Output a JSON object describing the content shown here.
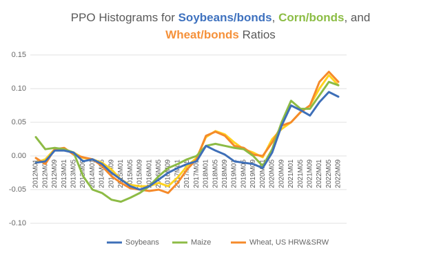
{
  "chart_data": {
    "type": "line",
    "title": [
      "PPO Histograms for ",
      {
        "text": "Soybeans/bonds",
        "color": "#3f72bf"
      },
      ", ",
      {
        "text": "Corn/bonds",
        "color": "#8cbd45"
      },
      ", and",
      {
        "text": "Wheat/bonds",
        "color": "#f5913a"
      },
      " Ratios"
    ],
    "categories": [
      "2012M01",
      "2012M05",
      "2012M09",
      "2013M01",
      "2013M05",
      "2013M09",
      "2014M01",
      "2014M05",
      "2014M09",
      "2015M01",
      "2015M05",
      "2015M09",
      "2016M01",
      "2016M05",
      "2016M09",
      "2017M01",
      "2017M05",
      "2017M09",
      "2018M01",
      "2018M05",
      "2018M09",
      "2019M01",
      "2019M05",
      "2019M09",
      "2020M01",
      "2020M05",
      "2020M09",
      "2021M01",
      "2021M05",
      "2021M09",
      "2022M01",
      "2022M05",
      "2022M09"
    ],
    "series": [
      {
        "color": "#ffd21f",
        "values": [
          -0.01,
          -0.005,
          0.01,
          0.01,
          0.005,
          -0.003,
          -0.005,
          -0.01,
          -0.02,
          -0.035,
          -0.043,
          -0.045,
          -0.045,
          -0.04,
          -0.045,
          -0.032,
          -0.015,
          -0.003,
          0.028,
          0.037,
          0.032,
          0.02,
          0.01,
          0.005,
          -0.002,
          0.025,
          0.04,
          0.05,
          0.065,
          0.075,
          0.1,
          0.12,
          0.105
        ]
      },
      {
        "name": "Wheat, US HRW&SRW",
        "color": "#f58a2a",
        "values": [
          -0.003,
          -0.012,
          0.01,
          0.012,
          0.002,
          -0.002,
          -0.005,
          -0.015,
          -0.03,
          -0.04,
          -0.048,
          -0.05,
          -0.052,
          -0.05,
          -0.055,
          -0.04,
          -0.02,
          -0.005,
          0.03,
          0.036,
          0.03,
          0.015,
          0.012,
          0.002,
          0.0,
          0.02,
          0.045,
          0.05,
          0.065,
          0.075,
          0.11,
          0.125,
          0.11
        ]
      },
      {
        "name": "Maize",
        "color": "#8dbb45",
        "values": [
          0.028,
          0.01,
          0.012,
          0.01,
          0.005,
          -0.03,
          -0.05,
          -0.055,
          -0.065,
          -0.068,
          -0.062,
          -0.055,
          -0.045,
          -0.03,
          -0.018,
          -0.012,
          -0.005,
          0.0,
          0.015,
          0.018,
          0.015,
          0.012,
          0.01,
          0.0,
          -0.015,
          0.01,
          0.05,
          0.082,
          0.07,
          0.07,
          0.09,
          0.11,
          0.105
        ]
      },
      {
        "name": "Soybeans",
        "color": "#3e6fb8",
        "values": [
          -0.01,
          -0.008,
          0.008,
          0.008,
          0.005,
          -0.008,
          -0.005,
          -0.012,
          -0.025,
          -0.035,
          -0.045,
          -0.05,
          -0.045,
          -0.035,
          -0.025,
          -0.018,
          -0.012,
          -0.008,
          0.015,
          0.008,
          0.002,
          -0.008,
          -0.01,
          -0.012,
          -0.018,
          0.005,
          0.045,
          0.075,
          0.068,
          0.06,
          0.08,
          0.095,
          0.088
        ]
      }
    ],
    "ylim": [
      -0.1,
      0.15
    ],
    "yticks": [
      {
        "value": -0.1,
        "label": "-0.10"
      },
      {
        "value": -0.05,
        "label": "-0.05"
      },
      {
        "value": 0,
        "label": "0.00"
      },
      {
        "value": 0.05,
        "label": "0.05"
      },
      {
        "value": 0.1,
        "label": "0.10"
      },
      {
        "value": 0.15,
        "label": "0.15"
      }
    ],
    "grid": true
  }
}
